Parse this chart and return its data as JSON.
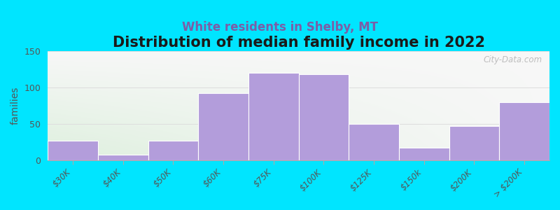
{
  "title": "Distribution of median family income in 2022",
  "subtitle": "White residents in Shelby, MT",
  "ylabel": "families",
  "categories": [
    "$30K",
    "$40K",
    "$50K",
    "$60K",
    "$75K",
    "$100K",
    "$125K",
    "$150k",
    "$200K",
    "> $200K"
  ],
  "values": [
    27,
    8,
    27,
    92,
    120,
    118,
    50,
    17,
    47,
    80
  ],
  "bar_color": "#b39ddb",
  "background_color": "#00e5ff",
  "ylim": [
    0,
    150
  ],
  "yticks": [
    0,
    50,
    100,
    150
  ],
  "title_fontsize": 15,
  "subtitle_fontsize": 12,
  "subtitle_color": "#7b5ea7",
  "watermark": "City-Data.com",
  "watermark_color": "#aaaaaa",
  "tick_label_color": "#555555",
  "ylabel_color": "#555555",
  "grid_color": "#dddddd",
  "spine_color": "#aaaaaa"
}
